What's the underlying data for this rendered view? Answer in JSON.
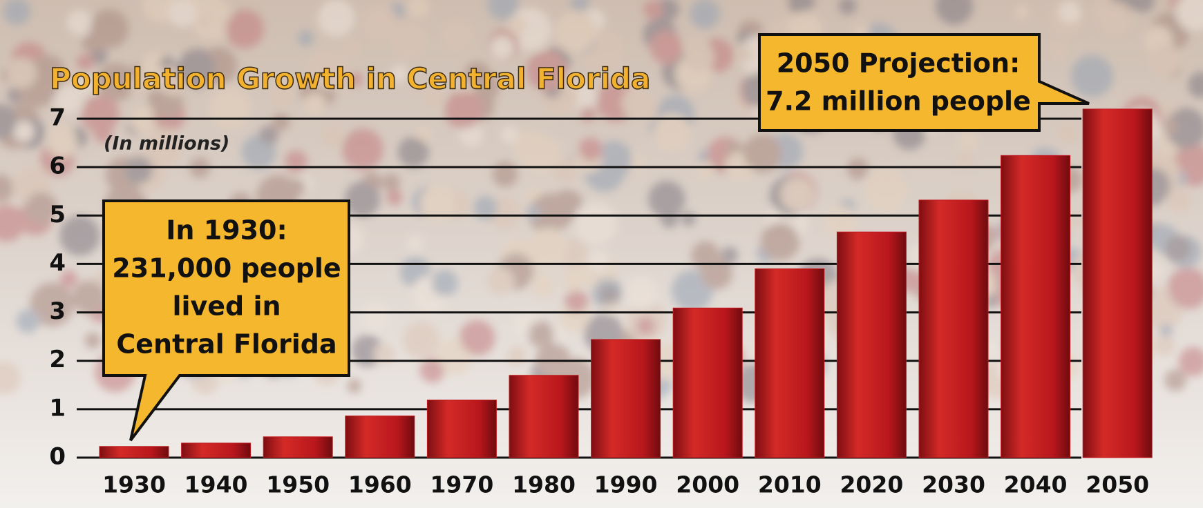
{
  "chart_data": {
    "type": "bar",
    "title": "Population Growth in Central Florida",
    "subtitle": "(In millions)",
    "categories": [
      "1930",
      "1940",
      "1950",
      "1960",
      "1970",
      "1980",
      "1990",
      "2000",
      "2010",
      "2020",
      "2030",
      "2040",
      "2050"
    ],
    "values": [
      0.231,
      0.3,
      0.43,
      0.86,
      1.19,
      1.7,
      2.44,
      3.09,
      3.9,
      4.66,
      5.32,
      6.24,
      7.2
    ],
    "color": "#c0191e",
    "ylim": [
      0,
      7
    ],
    "yticks": [
      0,
      1,
      2,
      3,
      4,
      5,
      6,
      7
    ],
    "grid": true,
    "annotations": [
      {
        "lines": [
          "In 1930:",
          "231,000 people",
          "lived in",
          "Central Florida"
        ]
      },
      {
        "lines": [
          "2050 Projection:",
          "7.2 million people"
        ]
      }
    ]
  }
}
